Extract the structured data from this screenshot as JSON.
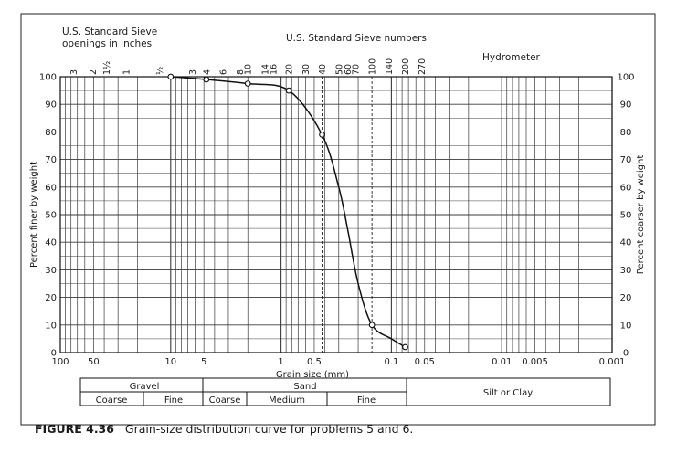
{
  "caption": {
    "figure_label": "FIGURE 4.36",
    "text": "Grain-size distribution curve for problems 5 and 6."
  },
  "chart_data": {
    "type": "line",
    "title": "",
    "xlabel": "Grain size (mm)",
    "ylabel": "Percent finer by weight",
    "y2label": "Percent coarser by weight",
    "xscale": "log",
    "x_reversed": true,
    "xlim": [
      100,
      0.001
    ],
    "ylim": [
      0,
      100
    ],
    "grid": true,
    "x_ticks": [
      {
        "value": 100,
        "label": "100"
      },
      {
        "value": 50,
        "label": "50"
      },
      {
        "value": 10,
        "label": "10"
      },
      {
        "value": 5,
        "label": "5"
      },
      {
        "value": 1,
        "label": "1"
      },
      {
        "value": 0.5,
        "label": "0.5"
      },
      {
        "value": 0.1,
        "label": "0.1"
      },
      {
        "value": 0.05,
        "label": "0.05"
      },
      {
        "value": 0.01,
        "label": "0.01"
      },
      {
        "value": 0.005,
        "label": "0.005"
      },
      {
        "value": 0.001,
        "label": "0.001"
      }
    ],
    "y_ticks": [
      0,
      10,
      20,
      30,
      40,
      50,
      60,
      70,
      80,
      90,
      100
    ],
    "y2_ticks": [
      "0",
      "10",
      "20",
      "30",
      "40",
      "50",
      "60",
      "70",
      "80",
      "90",
      "100"
    ],
    "sieve_openings_title_line1": "U.S. Standard Sieve",
    "sieve_openings_title_line2": "openings in inches",
    "sieve_numbers_title": "U.S. Standard Sieve numbers",
    "hydrometer_label": "Hydrometer",
    "sieve_openings": [
      {
        "label": "3",
        "size": 76.2
      },
      {
        "label": "2",
        "size": 50.8
      },
      {
        "label": "1½",
        "size": 38.1
      },
      {
        "label": "1",
        "size": 25.4
      },
      {
        "label": "½",
        "size": 12.7
      }
    ],
    "sieve_numbers": [
      {
        "label": "3",
        "size": 6.35
      },
      {
        "label": "4",
        "size": 4.75
      },
      {
        "label": "6",
        "size": 3.35
      },
      {
        "label": "8",
        "size": 2.36
      },
      {
        "label": "10",
        "size": 2.0
      },
      {
        "label": "14",
        "size": 1.4
      },
      {
        "label": "16",
        "size": 1.18
      },
      {
        "label": "20",
        "size": 0.85
      },
      {
        "label": "30",
        "size": 0.6
      },
      {
        "label": "40",
        "size": 0.425
      },
      {
        "label": "50",
        "size": 0.3
      },
      {
        "label": "60",
        "size": 0.25
      },
      {
        "label": "70",
        "size": 0.212
      },
      {
        "label": "100",
        "size": 0.15
      },
      {
        "label": "140",
        "size": 0.106
      },
      {
        "label": "200",
        "size": 0.075
      },
      {
        "label": "270",
        "size": 0.053
      }
    ],
    "dashed_lines_mm": [
      0.425,
      0.15
    ],
    "series": [
      {
        "x": [
          10,
          4.75,
          2.0,
          0.85,
          0.425,
          0.3,
          0.25,
          0.2,
          0.15,
          0.1,
          0.075
        ],
        "y": [
          100,
          99,
          97.5,
          95,
          79,
          60,
          45,
          25,
          10,
          5,
          2
        ],
        "markers_x": [
          10,
          4.75,
          2.0,
          0.85,
          0.425,
          0.15,
          0.075
        ]
      }
    ],
    "classification": {
      "gravel": "Gravel",
      "sand": "Sand",
      "silt_clay": "Silt or Clay",
      "coarse": "Coarse",
      "fine": "Fine",
      "medium": "Medium"
    }
  }
}
